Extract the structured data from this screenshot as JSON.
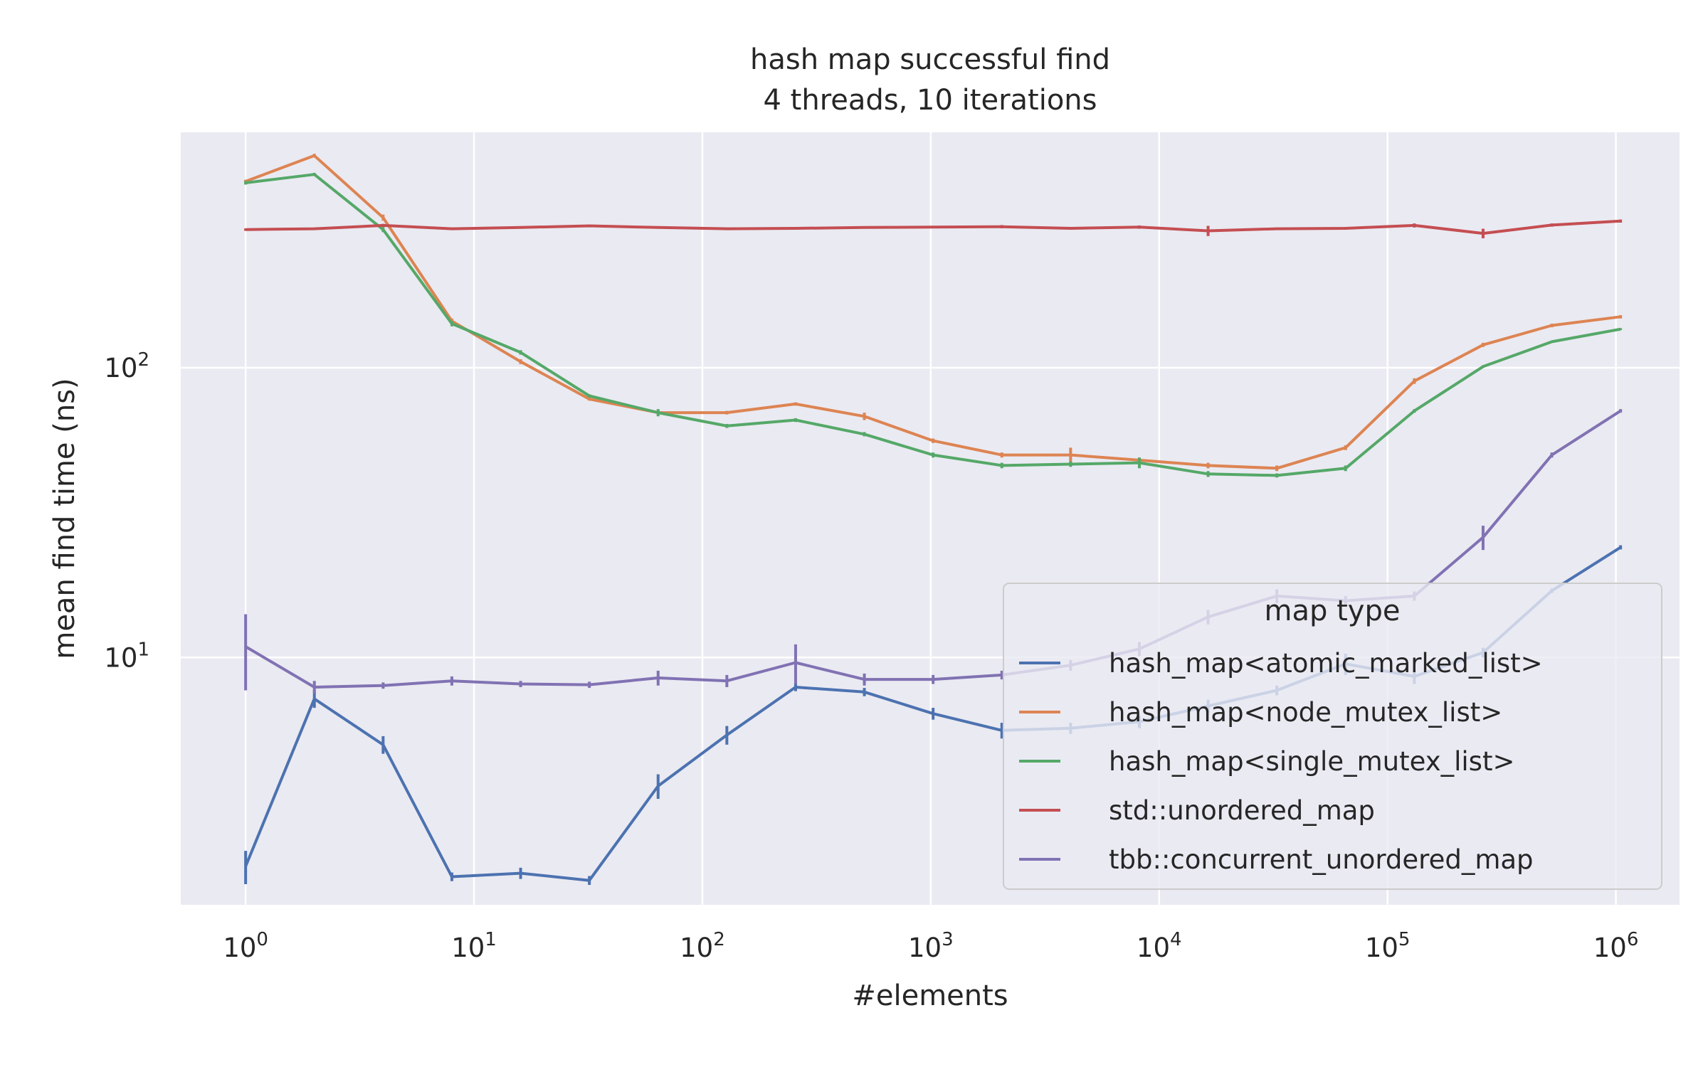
{
  "title": [
    "hash map successful find",
    "4 threads, 10 iterations"
  ],
  "xlabel": "#elements",
  "ylabel": "mean find time (ns)",
  "x_ticks": [
    {
      "base": "10",
      "exp": "0",
      "value": 1
    },
    {
      "base": "10",
      "exp": "1",
      "value": 10
    },
    {
      "base": "10",
      "exp": "2",
      "value": 100
    },
    {
      "base": "10",
      "exp": "3",
      "value": 1000
    },
    {
      "base": "10",
      "exp": "4",
      "value": 10000
    },
    {
      "base": "10",
      "exp": "5",
      "value": 100000
    },
    {
      "base": "10",
      "exp": "6",
      "value": 1000000
    }
  ],
  "y_ticks": [
    {
      "base": "10",
      "exp": "1",
      "value": 10
    },
    {
      "base": "10",
      "exp": "2",
      "value": 100
    }
  ],
  "legend": {
    "title": "map type",
    "placement": "lower-right"
  },
  "colors": {
    "background": "#eaeaf2",
    "grid": "#ffffff",
    "text": "#262626"
  },
  "chart_data": {
    "type": "line",
    "x_scale": "log2",
    "y_scale": "log10",
    "xlim": [
      0.52,
      1900000
    ],
    "ylim": [
      1.4,
      650
    ],
    "grid": true,
    "x": [
      1,
      2,
      4,
      8,
      16,
      32,
      64,
      128,
      256,
      512,
      1024,
      2048,
      4096,
      8192,
      16384,
      32768,
      65536,
      131072,
      262144,
      524288,
      1048576
    ],
    "series": [
      {
        "name": "hash_map<atomic_marked_list>",
        "color": "#4c72b0",
        "values": [
          1.9,
          7.2,
          5.0,
          1.75,
          1.8,
          1.7,
          3.6,
          5.4,
          7.9,
          7.6,
          6.4,
          5.6,
          5.7,
          6.0,
          6.8,
          7.7,
          9.5,
          8.6,
          10.4,
          17.0,
          24.0
        ],
        "errors": [
          0.25,
          0.5,
          0.35,
          0.06,
          0.08,
          0.06,
          0.35,
          0.4,
          0.25,
          0.25,
          0.3,
          0.35,
          0.25,
          0.3,
          0.35,
          0.3,
          0.8,
          0.5,
          0.4,
          0.3,
          0.4
        ]
      },
      {
        "name": "hash_map<node_mutex_list>",
        "color": "#dd8452",
        "values": [
          440,
          540,
          330,
          145,
          105,
          78,
          70,
          70,
          75,
          68,
          56,
          50,
          50,
          48,
          46,
          45,
          53,
          90,
          120,
          140,
          150
        ],
        "errors": [
          6,
          8,
          8,
          3,
          2,
          1,
          1,
          1,
          1,
          2,
          1,
          1,
          3,
          1,
          1,
          1,
          1,
          2,
          2,
          2,
          2
        ]
      },
      {
        "name": "hash_map<single_mutex_list>",
        "color": "#55a868",
        "values": [
          435,
          465,
          300,
          142,
          113,
          80,
          70,
          63,
          66,
          59,
          50,
          46,
          46.5,
          47,
          43,
          42.5,
          45,
          71,
          101,
          123,
          136
        ],
        "errors": [
          6,
          6,
          6,
          3,
          2,
          1,
          2,
          1,
          1,
          1,
          1,
          1,
          1,
          2,
          1,
          0.7,
          1,
          1,
          1,
          1,
          1
        ]
      },
      {
        "name": "std::unordered_map",
        "color": "#c44e52",
        "values": [
          300,
          302,
          310,
          302,
          305,
          309,
          305,
          302,
          303,
          305,
          306,
          307,
          303,
          306,
          297,
          302,
          303,
          310,
          291,
          311,
          321
        ],
        "errors": [
          3,
          3,
          4,
          3,
          3,
          3,
          3,
          3,
          3,
          3,
          3,
          4,
          3,
          4,
          12,
          3,
          3,
          5,
          11,
          4,
          4
        ]
      },
      {
        "name": "tbb::concurrent_unordered_map",
        "color": "#8172b3",
        "values": [
          10.9,
          7.9,
          8.0,
          8.3,
          8.1,
          8.05,
          8.5,
          8.3,
          9.6,
          8.4,
          8.4,
          8.7,
          9.4,
          10.7,
          13.8,
          16.3,
          15.7,
          16.3,
          26.0,
          50.0,
          71.0
        ],
        "errors": [
          3.2,
          0.4,
          0.2,
          0.3,
          0.2,
          0.2,
          0.5,
          0.4,
          1.5,
          0.4,
          0.3,
          0.3,
          0.4,
          0.6,
          0.8,
          0.9,
          0.6,
          0.6,
          2.5,
          1.0,
          1.0
        ]
      }
    ]
  }
}
